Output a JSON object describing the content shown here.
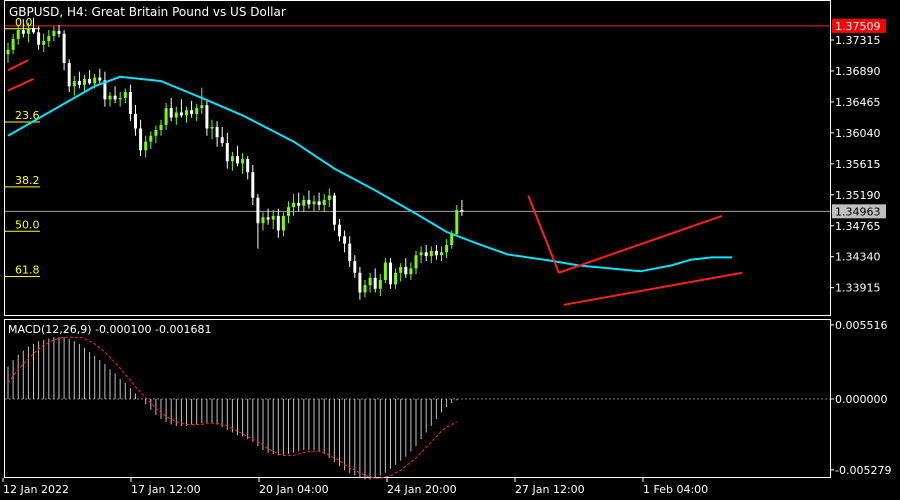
{
  "window": {
    "symbol_line": "GBPUSD, H4:  Great Britain Pound vs US Dollar"
  },
  "colors": {
    "background": "#000000",
    "frame": "#ffffff",
    "bull_candle": "#7cfc00",
    "bear_candle": "#ffffff",
    "moving_average": "#00e5ff",
    "trendline": "#ff1f1f",
    "fibo": "#ffff00",
    "macd_hist": "#c0c0c0",
    "macd_signal": "#ff2020",
    "price_line": "#a0a0a0",
    "label_red_bg": "#ff0000"
  },
  "chart_data": [
    {
      "type": "candlestick",
      "title": "GBPUSD, H4:  Great Britain Pound vs US Dollar",
      "ylim": [
        1.3354,
        1.3785
      ],
      "y_ticks": [
        "1.37315",
        "1.36890",
        "1.36465",
        "1.36040",
        "1.35615",
        "1.35190",
        "1.34765",
        "1.34340",
        "1.33915"
      ],
      "x_ticks": [
        "12 Jan 2022",
        "17 Jan 12:00",
        "20 Jan 04:00",
        "24 Jan 20:00",
        "27 Jan 12:00",
        "1 Feb 04:00"
      ],
      "current_price": "1.34963",
      "red_level": "1.37509",
      "fibo_levels": [
        {
          "label": "0.0",
          "price": 1.3751
        },
        {
          "label": "23.6",
          "price": 1.3623
        },
        {
          "label": "38.2",
          "price": 1.3534
        },
        {
          "label": "50.0",
          "price": 1.3473
        },
        {
          "label": "61.8",
          "price": 1.3411
        }
      ],
      "ohlc": [
        [
          1.3712,
          1.3728,
          1.37,
          1.3718
        ],
        [
          1.3718,
          1.374,
          1.3712,
          1.3733
        ],
        [
          1.3733,
          1.3752,
          1.3725,
          1.3745
        ],
        [
          1.3745,
          1.376,
          1.3735,
          1.374
        ],
        [
          1.374,
          1.3755,
          1.3728,
          1.3748
        ],
        [
          1.3748,
          1.3762,
          1.374,
          1.3742
        ],
        [
          1.3742,
          1.375,
          1.3718,
          1.3725
        ],
        [
          1.3725,
          1.374,
          1.3715,
          1.373
        ],
        [
          1.373,
          1.3745,
          1.3722,
          1.3737
        ],
        [
          1.3737,
          1.375,
          1.373,
          1.3744
        ],
        [
          1.3744,
          1.3752,
          1.3735,
          1.374
        ],
        [
          1.374,
          1.3745,
          1.369,
          1.37
        ],
        [
          1.37,
          1.3705,
          1.366,
          1.3668
        ],
        [
          1.3668,
          1.3682,
          1.3655,
          1.3675
        ],
        [
          1.3675,
          1.3688,
          1.3665,
          1.367
        ],
        [
          1.367,
          1.3684,
          1.3662,
          1.3678
        ],
        [
          1.3678,
          1.369,
          1.367,
          1.3672
        ],
        [
          1.3672,
          1.3685,
          1.3665,
          1.368
        ],
        [
          1.368,
          1.3692,
          1.3672,
          1.3676
        ],
        [
          1.3676,
          1.3688,
          1.364,
          1.365
        ],
        [
          1.365,
          1.366,
          1.364,
          1.3655
        ],
        [
          1.3655,
          1.3668,
          1.3645,
          1.365
        ],
        [
          1.365,
          1.366,
          1.364,
          1.3652
        ],
        [
          1.3652,
          1.3665,
          1.3645,
          1.366
        ],
        [
          1.366,
          1.367,
          1.362,
          1.363
        ],
        [
          1.363,
          1.3642,
          1.36,
          1.361
        ],
        [
          1.361,
          1.3622,
          1.3572,
          1.358
        ],
        [
          1.358,
          1.36,
          1.357,
          1.3592
        ],
        [
          1.3592,
          1.3606,
          1.3582,
          1.36
        ],
        [
          1.36,
          1.3614,
          1.359,
          1.3608
        ],
        [
          1.3608,
          1.3622,
          1.36,
          1.3615
        ],
        [
          1.3615,
          1.3645,
          1.3608,
          1.3638
        ],
        [
          1.3638,
          1.3652,
          1.362,
          1.3625
        ],
        [
          1.3625,
          1.364,
          1.3615,
          1.3632
        ],
        [
          1.3632,
          1.365,
          1.3625,
          1.3628
        ],
        [
          1.3628,
          1.364,
          1.3618,
          1.3635
        ],
        [
          1.3635,
          1.3648,
          1.3625,
          1.363
        ],
        [
          1.363,
          1.3644,
          1.362,
          1.3638
        ],
        [
          1.3638,
          1.3666,
          1.363,
          1.3642
        ],
        [
          1.3642,
          1.365,
          1.36,
          1.361
        ],
        [
          1.361,
          1.3622,
          1.3595,
          1.3612
        ],
        [
          1.3612,
          1.362,
          1.3585,
          1.3598
        ],
        [
          1.3598,
          1.3612,
          1.3585,
          1.359
        ],
        [
          1.359,
          1.3604,
          1.3555,
          1.3565
        ],
        [
          1.3565,
          1.3578,
          1.3552,
          1.3572
        ],
        [
          1.3572,
          1.3586,
          1.3558,
          1.3562
        ],
        [
          1.3562,
          1.3576,
          1.3548,
          1.3568
        ],
        [
          1.3568,
          1.3572,
          1.354,
          1.355
        ],
        [
          1.355,
          1.356,
          1.3505,
          1.3515
        ],
        [
          1.3515,
          1.352,
          1.3445,
          1.348
        ],
        [
          1.348,
          1.3495,
          1.347,
          1.3488
        ],
        [
          1.3488,
          1.35,
          1.3478,
          1.3485
        ],
        [
          1.3485,
          1.3498,
          1.3472,
          1.349
        ],
        [
          1.349,
          1.35,
          1.346,
          1.347
        ],
        [
          1.347,
          1.3495,
          1.3462,
          1.349
        ],
        [
          1.349,
          1.351,
          1.348,
          1.3502
        ],
        [
          1.3502,
          1.352,
          1.349,
          1.3508
        ],
        [
          1.3508,
          1.3522,
          1.3496,
          1.3504
        ],
        [
          1.3504,
          1.3518,
          1.3495,
          1.3512
        ],
        [
          1.3512,
          1.3525,
          1.35,
          1.3506
        ],
        [
          1.3506,
          1.3518,
          1.3496,
          1.351
        ],
        [
          1.351,
          1.3522,
          1.3498,
          1.3505
        ],
        [
          1.3505,
          1.352,
          1.3495,
          1.3512
        ],
        [
          1.3512,
          1.3528,
          1.3502,
          1.3518
        ],
        [
          1.3518,
          1.3522,
          1.347,
          1.3478
        ],
        [
          1.3478,
          1.3486,
          1.3455,
          1.3462
        ],
        [
          1.3462,
          1.347,
          1.344,
          1.3452
        ],
        [
          1.3452,
          1.3462,
          1.342,
          1.3428
        ],
        [
          1.3428,
          1.3436,
          1.3405,
          1.3412
        ],
        [
          1.3412,
          1.342,
          1.3375,
          1.3385
        ],
        [
          1.3385,
          1.3402,
          1.3378,
          1.3395
        ],
        [
          1.3395,
          1.3412,
          1.3385,
          1.3405
        ],
        [
          1.3405,
          1.3418,
          1.3385,
          1.339
        ],
        [
          1.339,
          1.341,
          1.338,
          1.3402
        ],
        [
          1.3402,
          1.3432,
          1.3398,
          1.3426
        ],
        [
          1.3426,
          1.3432,
          1.339,
          1.3396
        ],
        [
          1.3396,
          1.3418,
          1.339,
          1.3412
        ],
        [
          1.3412,
          1.3425,
          1.34,
          1.342
        ],
        [
          1.342,
          1.3432,
          1.3405,
          1.341
        ],
        [
          1.341,
          1.3426,
          1.3402,
          1.3418
        ],
        [
          1.3418,
          1.3442,
          1.341,
          1.3436
        ],
        [
          1.3436,
          1.3448,
          1.3425,
          1.344
        ],
        [
          1.344,
          1.345,
          1.3428,
          1.3435
        ],
        [
          1.3435,
          1.3448,
          1.3425,
          1.3442
        ],
        [
          1.3442,
          1.345,
          1.343,
          1.3436
        ],
        [
          1.3436,
          1.3448,
          1.3428,
          1.344
        ],
        [
          1.344,
          1.3458,
          1.3432,
          1.345
        ],
        [
          1.345,
          1.347,
          1.3445,
          1.3465
        ],
        [
          1.3465,
          1.3505,
          1.3462,
          1.3498
        ],
        [
          1.3498,
          1.3512,
          1.349,
          1.3496
        ]
      ],
      "ma_points": [
        [
          0,
          1.36
        ],
        [
          10,
          1.364
        ],
        [
          17,
          1.3668
        ],
        [
          22,
          1.3681
        ],
        [
          30,
          1.3675
        ],
        [
          38,
          1.3652
        ],
        [
          46,
          1.3628
        ],
        [
          56,
          1.3592
        ],
        [
          64,
          1.3555
        ],
        [
          72,
          1.3525
        ],
        [
          80,
          1.3493
        ],
        [
          86,
          1.3468
        ],
        [
          92,
          1.3452
        ],
        [
          98,
          1.3437
        ],
        [
          106,
          1.3429
        ],
        [
          112,
          1.3422
        ],
        [
          118,
          1.3418
        ],
        [
          124,
          1.3414
        ],
        [
          130,
          1.3422
        ],
        [
          134,
          1.343
        ],
        [
          138,
          1.3433
        ],
        [
          142,
          1.3433
        ]
      ],
      "trendlines": [
        [
          [
            0,
            1.369
          ],
          [
            4,
            1.3704
          ]
        ],
        [
          [
            0,
            1.3662
          ],
          [
            5,
            1.3678
          ]
        ],
        [
          [
            102,
            1.3518
          ],
          [
            108,
            1.3412
          ]
        ],
        [
          [
            108,
            1.3412
          ],
          [
            140,
            1.349
          ]
        ],
        [
          [
            109,
            1.3368
          ],
          [
            144,
            1.3412
          ]
        ]
      ]
    },
    {
      "type": "bar",
      "title": "MACD(12,26,9) -0.000100 -0.001681",
      "ylim": [
        -0.00581,
        0.00588
      ],
      "y_ticks": [
        "0.005516",
        "0.000000",
        "-0.005279"
      ],
      "histogram": [
        0.0024,
        0.0029,
        0.0033,
        0.0036,
        0.0039,
        0.0041,
        0.0043,
        0.0044,
        0.0045,
        0.0046,
        0.0046,
        0.0046,
        0.0045,
        0.0043,
        0.0041,
        0.0038,
        0.0035,
        0.0032,
        0.0029,
        0.0026,
        0.0022,
        0.0019,
        0.0015,
        0.0012,
        0.0008,
        0.0004,
        0.0,
        -0.0004,
        -0.0008,
        -0.0012,
        -0.0015,
        -0.0017,
        -0.0019,
        -0.002,
        -0.002,
        -0.002,
        -0.0019,
        -0.0019,
        -0.0018,
        -0.0018,
        -0.0018,
        -0.0019,
        -0.0021,
        -0.0023,
        -0.0025,
        -0.0027,
        -0.0028,
        -0.003,
        -0.0032,
        -0.0035,
        -0.0038,
        -0.004,
        -0.0041,
        -0.0042,
        -0.0042,
        -0.0041,
        -0.004,
        -0.0039,
        -0.0038,
        -0.0038,
        -0.0038,
        -0.0039,
        -0.0041,
        -0.0044,
        -0.0047,
        -0.005,
        -0.0053,
        -0.0055,
        -0.0057,
        -0.0059,
        -0.006,
        -0.006,
        -0.0059,
        -0.0057,
        -0.0055,
        -0.0052,
        -0.0049,
        -0.0046,
        -0.0043,
        -0.0039,
        -0.0035,
        -0.003,
        -0.0025,
        -0.002,
        -0.0015,
        -0.001,
        -0.0006,
        -0.0003,
        -0.0001
      ],
      "signal": [
        0.0012,
        0.0017,
        0.0022,
        0.0026,
        0.003,
        0.0034,
        0.0037,
        0.004,
        0.0042,
        0.0044,
        0.0045,
        0.0046,
        0.0046,
        0.0046,
        0.0046,
        0.0045,
        0.0043,
        0.0041,
        0.0038,
        0.0035,
        0.0031,
        0.0027,
        0.0023,
        0.0018,
        0.0014,
        0.0009,
        0.0005,
        0.0001,
        -0.0003,
        -0.0007,
        -0.001,
        -0.0013,
        -0.0015,
        -0.0017,
        -0.0018,
        -0.0019,
        -0.0019,
        -0.0019,
        -0.0019,
        -0.0018,
        -0.0018,
        -0.0018,
        -0.0019,
        -0.002,
        -0.0022,
        -0.0024,
        -0.0026,
        -0.0028,
        -0.003,
        -0.0032,
        -0.0034,
        -0.0037,
        -0.0039,
        -0.0041,
        -0.0042,
        -0.0042,
        -0.0042,
        -0.0041,
        -0.004,
        -0.0039,
        -0.0039,
        -0.0039,
        -0.004,
        -0.0042,
        -0.0044,
        -0.0046,
        -0.0049,
        -0.0051,
        -0.0053,
        -0.0055,
        -0.0057,
        -0.0058,
        -0.0059,
        -0.0059,
        -0.0058,
        -0.0057,
        -0.0055,
        -0.0053,
        -0.005,
        -0.0047,
        -0.0044,
        -0.004,
        -0.0036,
        -0.0032,
        -0.0028,
        -0.0024,
        -0.0021,
        -0.0019,
        -0.0017
      ]
    }
  ]
}
